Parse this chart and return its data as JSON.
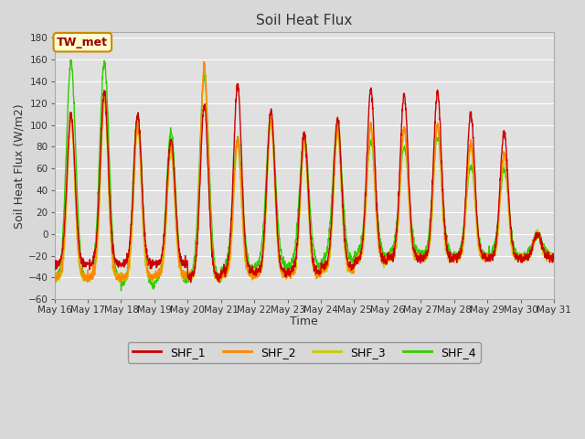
{
  "title": "Soil Heat Flux",
  "xlabel": "Time",
  "ylabel": "Soil Heat Flux (W/m2)",
  "ylim": [
    -60,
    185
  ],
  "yticks": [
    -60,
    -40,
    -20,
    0,
    20,
    40,
    60,
    80,
    100,
    120,
    140,
    160,
    180
  ],
  "background_color": "#d8d8d8",
  "plot_bg_color": "#e0e0e0",
  "grid_color": "#ffffff",
  "colors": {
    "SHF_1": "#cc0000",
    "SHF_2": "#ff8800",
    "SHF_3": "#cccc00",
    "SHF_4": "#33cc00"
  },
  "label_box_color": "#ffffcc",
  "label_box_edge": "#cc8800",
  "n_days": 15,
  "n_points_per_day": 144,
  "day_start": 16,
  "shf1_peaks": [
    110,
    130,
    110,
    87,
    118,
    137,
    113,
    92,
    105,
    132,
    128,
    130,
    109,
    93,
    0
  ],
  "shf2_peaks": [
    105,
    126,
    99,
    80,
    154,
    86,
    105,
    85,
    95,
    100,
    98,
    101,
    83,
    73,
    0
  ],
  "shf3_peaks": [
    107,
    122,
    97,
    77,
    151,
    83,
    102,
    82,
    92,
    97,
    96,
    98,
    80,
    71,
    0
  ],
  "shf4_peaks": [
    157,
    157,
    108,
    94,
    143,
    87,
    107,
    90,
    100,
    84,
    80,
    88,
    62,
    59,
    0
  ],
  "shf1_night": [
    -28,
    -28,
    -28,
    -28,
    -40,
    -35,
    -35,
    -35,
    -30,
    -25,
    -22,
    -22,
    -22,
    -22,
    -22
  ],
  "shf2_night": [
    -40,
    -40,
    -40,
    -38,
    -40,
    -38,
    -38,
    -38,
    -33,
    -25,
    -22,
    -22,
    -22,
    -22,
    -22
  ],
  "shf3_night": [
    -40,
    -40,
    -40,
    -38,
    -40,
    -37,
    -37,
    -37,
    -32,
    -25,
    -22,
    -22,
    -22,
    -22,
    -22
  ],
  "shf4_night": [
    -42,
    -42,
    -48,
    -44,
    -42,
    -33,
    -30,
    -30,
    -25,
    -20,
    -18,
    -20,
    -20,
    -20,
    -20
  ]
}
